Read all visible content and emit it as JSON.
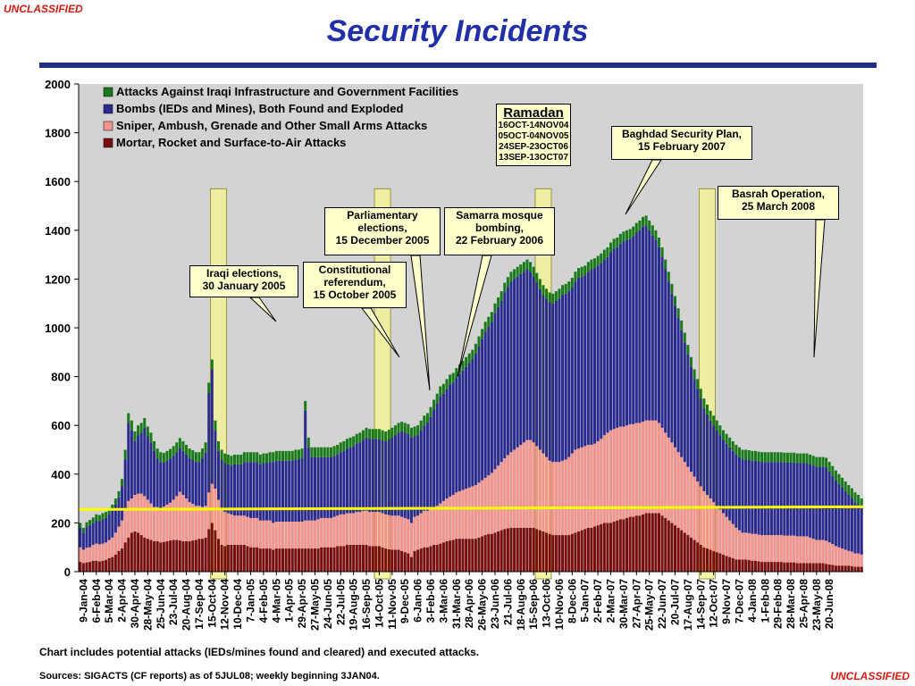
{
  "classification": "UNCLASSIFIED",
  "title": "Security Incidents",
  "note": "Chart includes potential attacks (IEDs/mines found and cleared) and executed attacks.",
  "sources": "Sources:  SIGACTS (CF reports) as of 5JUL08; weekly beginning 3JAN04.",
  "colors": {
    "title": "#2130a8",
    "classification": "#d21c12",
    "rule": "#1f2f87",
    "plot_bg": "#d3d3d3",
    "infrastructure": "#187a18",
    "bombs": "#2b2b8f",
    "sniper": "#f4948e",
    "mortar": "#7a0e0e",
    "highlight_band": "#f3f39a",
    "reference_line": "#ffff00"
  },
  "ramadan": {
    "title": "Ramadan",
    "periods": [
      "16OCT-14NOV04",
      "05OCT-04NOV05",
      "24SEP-23OCT06",
      "13SEP-13OCT07"
    ]
  },
  "annotations": [
    {
      "id": "iraqi-elections",
      "text": "Iraqi elections,\n30 January 2005"
    },
    {
      "id": "constitutional-referendum",
      "text": "Constitutional\nreferendum,\n15 October 2005"
    },
    {
      "id": "parliamentary-elections",
      "text": "Parliamentary\nelections,\n15 December 2005"
    },
    {
      "id": "samarra-bombing",
      "text": "Samarra mosque\nbombing,\n22 February 2006"
    },
    {
      "id": "baghdad-security-plan",
      "text": "Baghdad Security Plan,\n15 February 2007"
    },
    {
      "id": "basrah-operation",
      "text": "Basrah Operation,\n25 March 2008"
    }
  ],
  "chart_data": {
    "type": "bar",
    "stacked": true,
    "weekly_start": "2004-01-03",
    "title": "",
    "xlabel": "",
    "ylabel": "",
    "ylim": [
      0,
      2000
    ],
    "yticks": [
      0,
      200,
      400,
      600,
      800,
      1000,
      1200,
      1400,
      1600,
      1800,
      2000
    ],
    "x_tick_labels": [
      "9-Jan-04",
      "6-Feb-04",
      "5-Mar-04",
      "2-Apr-04",
      "30-Apr-04",
      "28-May-04",
      "25-Jun-04",
      "23-Jul-04",
      "20-Aug-04",
      "17-Sep-04",
      "15-Oct-04",
      "12-Nov-04",
      "10-Dec-04",
      "7-Jan-05",
      "4-Feb-05",
      "4-Mar-05",
      "1-Apr-05",
      "29-Apr-05",
      "27-May-05",
      "24-Jun-05",
      "22-Jul-05",
      "19-Aug-05",
      "16-Sep-05",
      "14-Oct-05",
      "11-Nov-05",
      "9-Dec-05",
      "6-Jan-06",
      "3-Feb-06",
      "3-Mar-06",
      "31-Mar-06",
      "28-Apr-06",
      "26-May-06",
      "23-Jun-06",
      "21-Jul-06",
      "18-Aug-06",
      "15-Sep-06",
      "13-Oct-06",
      "10-Nov-06",
      "8-Dec-06",
      "5-Jan-07",
      "2-Feb-07",
      "2-Mar-07",
      "30-Mar-07",
      "27-Apr-07",
      "25-May-07",
      "22-Jun-07",
      "20-Jul-07",
      "17-Aug-07",
      "14-Sep-07",
      "12-Oct-07",
      "9-Nov-07",
      "7-Dec-07",
      "4-Jan-08",
      "1-Feb-08",
      "29-Feb-08",
      "28-Mar-08",
      "25-Apr-08",
      "23-May-08",
      "20-Jun-08"
    ],
    "legend_order": [
      "Attacks Against Iraqi Infrastructure and Government Facilities",
      "Bombs (IEDs and Mines), Both Found and Exploded",
      "Sniper, Ambush, Grenade and Other Small Arms Attacks",
      "Mortar, Rocket and Surface-to-Air Attacks"
    ],
    "legend_position": "top-left",
    "grid": false,
    "reference_line_value": 255,
    "highlight_bands": [
      {
        "from_week": 41,
        "to_week": 45
      },
      {
        "from_week": 92,
        "to_week": 96
      },
      {
        "from_week": 142,
        "to_week": 146
      },
      {
        "from_week": 193,
        "to_week": 197
      }
    ],
    "series": [
      {
        "name": "Mortar, Rocket and Surface-to-Air Attacks",
        "color": "#7a0e0e",
        "values": [
          40,
          35,
          38,
          40,
          45,
          45,
          42,
          45,
          48,
          55,
          60,
          70,
          85,
          95,
          120,
          140,
          160,
          165,
          160,
          150,
          140,
          135,
          130,
          125,
          125,
          120,
          122,
          125,
          128,
          130,
          130,
          128,
          125,
          125,
          125,
          128,
          130,
          135,
          135,
          140,
          175,
          200,
          170,
          135,
          110,
          105,
          110,
          110,
          110,
          110,
          110,
          110,
          105,
          100,
          100,
          100,
          95,
          95,
          95,
          95,
          90,
          95,
          95,
          95,
          95,
          95,
          95,
          95,
          95,
          95,
          95,
          95,
          95,
          95,
          95,
          100,
          100,
          100,
          100,
          100,
          105,
          105,
          105,
          110,
          110,
          110,
          110,
          110,
          110,
          110,
          105,
          105,
          105,
          105,
          100,
          95,
          92,
          90,
          90,
          90,
          85,
          80,
          75,
          60,
          85,
          90,
          95,
          100,
          100,
          105,
          110,
          110,
          115,
          120,
          125,
          128,
          130,
          135,
          135,
          135,
          135,
          135,
          135,
          135,
          140,
          145,
          150,
          155,
          155,
          160,
          165,
          170,
          175,
          178,
          180,
          180,
          180,
          180,
          180,
          180,
          180,
          180,
          175,
          170,
          165,
          160,
          155,
          150,
          150,
          150,
          150,
          150,
          150,
          155,
          160,
          165,
          170,
          175,
          180,
          180,
          185,
          190,
          195,
          200,
          200,
          200,
          205,
          210,
          215,
          215,
          220,
          225,
          225,
          230,
          230,
          235,
          240,
          240,
          240,
          240,
          240,
          230,
          220,
          210,
          200,
          190,
          180,
          170,
          160,
          150,
          140,
          130,
          120,
          110,
          100,
          95,
          90,
          85,
          80,
          75,
          70,
          65,
          60,
          55,
          50,
          50,
          50,
          50,
          48,
          45,
          45,
          42,
          40,
          40,
          40,
          40,
          40,
          40,
          40,
          38,
          38,
          38,
          38,
          35,
          35,
          35,
          35,
          35,
          35,
          35,
          35,
          35,
          32,
          30,
          28,
          25,
          25,
          25,
          25,
          25,
          22,
          20,
          20,
          20
        ]
      },
      {
        "name": "Sniper, Ambush, Grenade and Other Small Arms Attacks",
        "color": "#f4948e",
        "values": [
          60,
          55,
          60,
          60,
          65,
          70,
          70,
          70,
          72,
          75,
          80,
          90,
          100,
          115,
          140,
          150,
          140,
          150,
          160,
          170,
          170,
          160,
          150,
          140,
          140,
          140,
          145,
          150,
          155,
          165,
          180,
          200,
          190,
          175,
          160,
          150,
          140,
          135,
          130,
          130,
          150,
          160,
          170,
          160,
          150,
          140,
          130,
          125,
          120,
          120,
          120,
          120,
          120,
          120,
          120,
          120,
          115,
          115,
          115,
          115,
          110,
          110,
          110,
          110,
          110,
          110,
          110,
          110,
          110,
          110,
          115,
          115,
          115,
          115,
          120,
          120,
          120,
          120,
          120,
          125,
          125,
          130,
          130,
          130,
          130,
          130,
          135,
          135,
          140,
          140,
          140,
          140,
          140,
          140,
          140,
          140,
          140,
          140,
          140,
          140,
          140,
          140,
          140,
          140,
          140,
          140,
          145,
          150,
          150,
          150,
          155,
          160,
          165,
          170,
          175,
          180,
          185,
          190,
          195,
          200,
          205,
          210,
          215,
          220,
          225,
          230,
          235,
          240,
          250,
          260,
          270,
          280,
          290,
          300,
          310,
          320,
          330,
          340,
          350,
          360,
          360,
          350,
          340,
          330,
          320,
          310,
          300,
          300,
          300,
          300,
          305,
          310,
          320,
          330,
          340,
          340,
          340,
          340,
          340,
          340,
          340,
          345,
          350,
          360,
          370,
          380,
          380,
          380,
          380,
          380,
          380,
          380,
          380,
          380,
          380,
          380,
          380,
          380,
          380,
          380,
          370,
          360,
          350,
          340,
          330,
          320,
          310,
          300,
          290,
          280,
          270,
          260,
          250,
          240,
          230,
          220,
          210,
          200,
          190,
          180,
          170,
          160,
          150,
          140,
          130,
          120,
          110,
          110,
          110,
          110,
          110,
          110,
          110,
          110,
          110,
          110,
          110,
          110,
          110,
          110,
          110,
          110,
          110,
          110,
          110,
          110,
          110,
          105,
          100,
          95,
          95,
          95,
          95,
          90,
          85,
          80,
          75,
          70,
          65,
          60,
          60,
          55,
          55,
          50,
          45,
          40,
          35
        ]
      },
      {
        "name": "Bombs (IEDs and Mines), Both Found and Exploded",
        "color": "#2b2b8f",
        "values": [
          80,
          70,
          85,
          90,
          90,
          95,
          95,
          100,
          100,
          105,
          110,
          115,
          120,
          140,
          200,
          320,
          280,
          220,
          240,
          250,
          280,
          260,
          250,
          230,
          200,
          190,
          180,
          180,
          180,
          180,
          180,
          180,
          180,
          180,
          180,
          180,
          180,
          180,
          200,
          220,
          410,
          470,
          240,
          200,
          200,
          200,
          200,
          200,
          210,
          210,
          210,
          220,
          225,
          230,
          230,
          230,
          230,
          235,
          235,
          240,
          250,
          250,
          250,
          250,
          250,
          250,
          250,
          255,
          255,
          260,
          450,
          300,
          260,
          260,
          255,
          250,
          250,
          250,
          250,
          250,
          250,
          255,
          260,
          265,
          270,
          275,
          280,
          285,
          290,
          300,
          300,
          300,
          300,
          300,
          300,
          300,
          310,
          320,
          330,
          340,
          350,
          350,
          350,
          350,
          330,
          330,
          340,
          350,
          360,
          380,
          400,
          420,
          440,
          440,
          450,
          460,
          460,
          470,
          480,
          490,
          500,
          510,
          520,
          540,
          560,
          580,
          600,
          610,
          620,
          640,
          650,
          660,
          680,
          690,
          700,
          700,
          700,
          700,
          700,
          700,
          690,
          680,
          670,
          660,
          650,
          650,
          650,
          650,
          660,
          670,
          680,
          680,
          680,
          680,
          690,
          700,
          700,
          700,
          710,
          720,
          720,
          720,
          720,
          720,
          720,
          730,
          740,
          740,
          750,
          760,
          760,
          760,
          770,
          780,
          790,
          800,
          800,
          780,
          760,
          740,
          720,
          700,
          670,
          640,
          610,
          580,
          550,
          520,
          490,
          460,
          430,
          400,
          380,
          360,
          340,
          330,
          320,
          315,
          310,
          305,
          300,
          300,
          300,
          300,
          300,
          300,
          300,
          300,
          300,
          300,
          300,
          300,
          300,
          300,
          300,
          300,
          300,
          300,
          300,
          300,
          300,
          300,
          300,
          300,
          300,
          300,
          300,
          300,
          300,
          300,
          300,
          300,
          300,
          290,
          280,
          270,
          260,
          250,
          240,
          230,
          220,
          210,
          200,
          190,
          180,
          170,
          160
        ]
      },
      {
        "name": "Attacks Against Iraqi Infrastructure and Government Facilities",
        "color": "#187a18",
        "values": [
          20,
          20,
          20,
          22,
          22,
          25,
          25,
          25,
          25,
          25,
          25,
          25,
          25,
          30,
          40,
          40,
          40,
          40,
          40,
          40,
          40,
          40,
          40,
          40,
          40,
          40,
          40,
          40,
          40,
          40,
          40,
          40,
          40,
          40,
          40,
          40,
          40,
          40,
          40,
          40,
          40,
          40,
          40,
          40,
          40,
          40,
          40,
          40,
          40,
          40,
          40,
          40,
          40,
          40,
          40,
          40,
          40,
          40,
          40,
          40,
          40,
          40,
          40,
          40,
          40,
          40,
          40,
          40,
          40,
          40,
          40,
          40,
          40,
          40,
          40,
          40,
          40,
          40,
          40,
          40,
          40,
          40,
          40,
          40,
          40,
          40,
          40,
          40,
          40,
          40,
          40,
          40,
          40,
          40,
          40,
          40,
          40,
          40,
          40,
          40,
          40,
          40,
          40,
          40,
          40,
          40,
          40,
          40,
          40,
          40,
          40,
          40,
          40,
          40,
          40,
          40,
          40,
          40,
          40,
          40,
          40,
          40,
          40,
          40,
          40,
          40,
          40,
          40,
          40,
          40,
          40,
          40,
          40,
          40,
          40,
          40,
          40,
          40,
          40,
          40,
          40,
          40,
          40,
          40,
          40,
          40,
          40,
          40,
          40,
          40,
          40,
          40,
          40,
          40,
          40,
          40,
          40,
          40,
          40,
          40,
          40,
          40,
          40,
          40,
          40,
          40,
          40,
          40,
          40,
          40,
          40,
          40,
          40,
          40,
          40,
          40,
          40,
          40,
          40,
          40,
          40,
          40,
          40,
          40,
          40,
          40,
          40,
          40,
          40,
          40,
          40,
          40,
          40,
          40,
          40,
          40,
          40,
          40,
          40,
          40,
          40,
          40,
          40,
          40,
          40,
          40,
          40,
          40,
          40,
          40,
          40,
          40,
          40,
          40,
          40,
          40,
          40,
          40,
          40,
          40,
          40,
          40,
          40,
          40,
          40,
          40,
          40,
          40,
          40,
          40,
          40,
          40,
          40,
          40,
          40,
          40,
          40,
          40,
          40,
          40,
          40,
          40,
          40,
          40,
          40,
          40,
          40,
          40,
          40,
          40
        ]
      }
    ]
  }
}
